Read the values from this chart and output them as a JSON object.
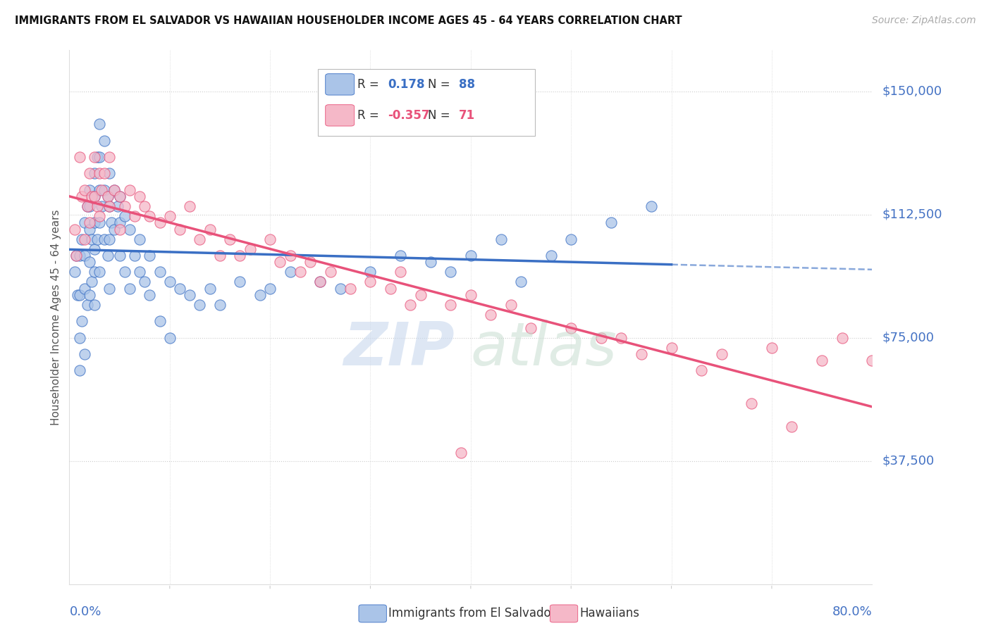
{
  "title": "IMMIGRANTS FROM EL SALVADOR VS HAWAIIAN HOUSEHOLDER INCOME AGES 45 - 64 YEARS CORRELATION CHART",
  "source": "Source: ZipAtlas.com",
  "ylabel": "Householder Income Ages 45 - 64 years",
  "ytick_labels": [
    "$37,500",
    "$75,000",
    "$112,500",
    "$150,000"
  ],
  "ytick_values": [
    37500,
    75000,
    112500,
    150000
  ],
  "ylim": [
    0,
    162500
  ],
  "xlim": [
    0.0,
    0.8
  ],
  "legend_blue_r": "0.178",
  "legend_blue_n": "88",
  "legend_pink_r": "-0.357",
  "legend_pink_n": "71",
  "blue_color": "#aac4e8",
  "pink_color": "#f5b8c8",
  "blue_line_color": "#3a6fc4",
  "pink_line_color": "#e8527a",
  "blue_scatter_x": [
    0.005,
    0.007,
    0.008,
    0.01,
    0.01,
    0.01,
    0.01,
    0.012,
    0.012,
    0.015,
    0.015,
    0.015,
    0.015,
    0.018,
    0.018,
    0.02,
    0.02,
    0.02,
    0.02,
    0.02,
    0.022,
    0.022,
    0.025,
    0.025,
    0.025,
    0.025,
    0.025,
    0.025,
    0.028,
    0.028,
    0.03,
    0.03,
    0.03,
    0.03,
    0.03,
    0.032,
    0.035,
    0.035,
    0.035,
    0.038,
    0.038,
    0.04,
    0.04,
    0.04,
    0.04,
    0.042,
    0.045,
    0.045,
    0.048,
    0.05,
    0.05,
    0.05,
    0.055,
    0.055,
    0.06,
    0.06,
    0.065,
    0.07,
    0.07,
    0.075,
    0.08,
    0.08,
    0.09,
    0.09,
    0.1,
    0.1,
    0.11,
    0.12,
    0.13,
    0.14,
    0.15,
    0.17,
    0.19,
    0.2,
    0.22,
    0.25,
    0.27,
    0.3,
    0.33,
    0.36,
    0.38,
    0.4,
    0.43,
    0.45,
    0.48,
    0.5,
    0.54,
    0.58
  ],
  "blue_scatter_y": [
    95000,
    100000,
    88000,
    100000,
    88000,
    75000,
    65000,
    105000,
    80000,
    110000,
    100000,
    90000,
    70000,
    115000,
    85000,
    120000,
    115000,
    108000,
    98000,
    88000,
    105000,
    92000,
    125000,
    118000,
    110000,
    102000,
    95000,
    85000,
    130000,
    105000,
    140000,
    130000,
    120000,
    110000,
    95000,
    115000,
    135000,
    120000,
    105000,
    118000,
    100000,
    125000,
    115000,
    105000,
    90000,
    110000,
    120000,
    108000,
    115000,
    118000,
    110000,
    100000,
    112000,
    95000,
    108000,
    90000,
    100000,
    105000,
    95000,
    92000,
    100000,
    88000,
    95000,
    80000,
    92000,
    75000,
    90000,
    88000,
    85000,
    90000,
    85000,
    92000,
    88000,
    90000,
    95000,
    92000,
    90000,
    95000,
    100000,
    98000,
    95000,
    100000,
    105000,
    92000,
    100000,
    105000,
    110000,
    115000
  ],
  "pink_scatter_x": [
    0.005,
    0.007,
    0.01,
    0.012,
    0.015,
    0.015,
    0.018,
    0.02,
    0.02,
    0.022,
    0.025,
    0.025,
    0.028,
    0.03,
    0.03,
    0.032,
    0.035,
    0.038,
    0.04,
    0.04,
    0.045,
    0.05,
    0.05,
    0.055,
    0.06,
    0.065,
    0.07,
    0.075,
    0.08,
    0.09,
    0.1,
    0.11,
    0.12,
    0.13,
    0.14,
    0.15,
    0.16,
    0.17,
    0.18,
    0.2,
    0.21,
    0.22,
    0.23,
    0.24,
    0.25,
    0.26,
    0.28,
    0.3,
    0.32,
    0.33,
    0.34,
    0.35,
    0.38,
    0.4,
    0.42,
    0.44,
    0.46,
    0.5,
    0.53,
    0.55,
    0.57,
    0.6,
    0.63,
    0.65,
    0.68,
    0.7,
    0.72,
    0.75,
    0.77,
    0.8,
    0.39
  ],
  "pink_scatter_y": [
    108000,
    100000,
    130000,
    118000,
    120000,
    105000,
    115000,
    125000,
    110000,
    118000,
    130000,
    118000,
    115000,
    125000,
    112000,
    120000,
    125000,
    118000,
    130000,
    115000,
    120000,
    118000,
    108000,
    115000,
    120000,
    112000,
    118000,
    115000,
    112000,
    110000,
    112000,
    108000,
    115000,
    105000,
    108000,
    100000,
    105000,
    100000,
    102000,
    105000,
    98000,
    100000,
    95000,
    98000,
    92000,
    95000,
    90000,
    92000,
    90000,
    95000,
    85000,
    88000,
    85000,
    88000,
    82000,
    85000,
    78000,
    78000,
    75000,
    75000,
    70000,
    72000,
    65000,
    70000,
    55000,
    72000,
    48000,
    68000,
    75000,
    68000,
    40000
  ]
}
